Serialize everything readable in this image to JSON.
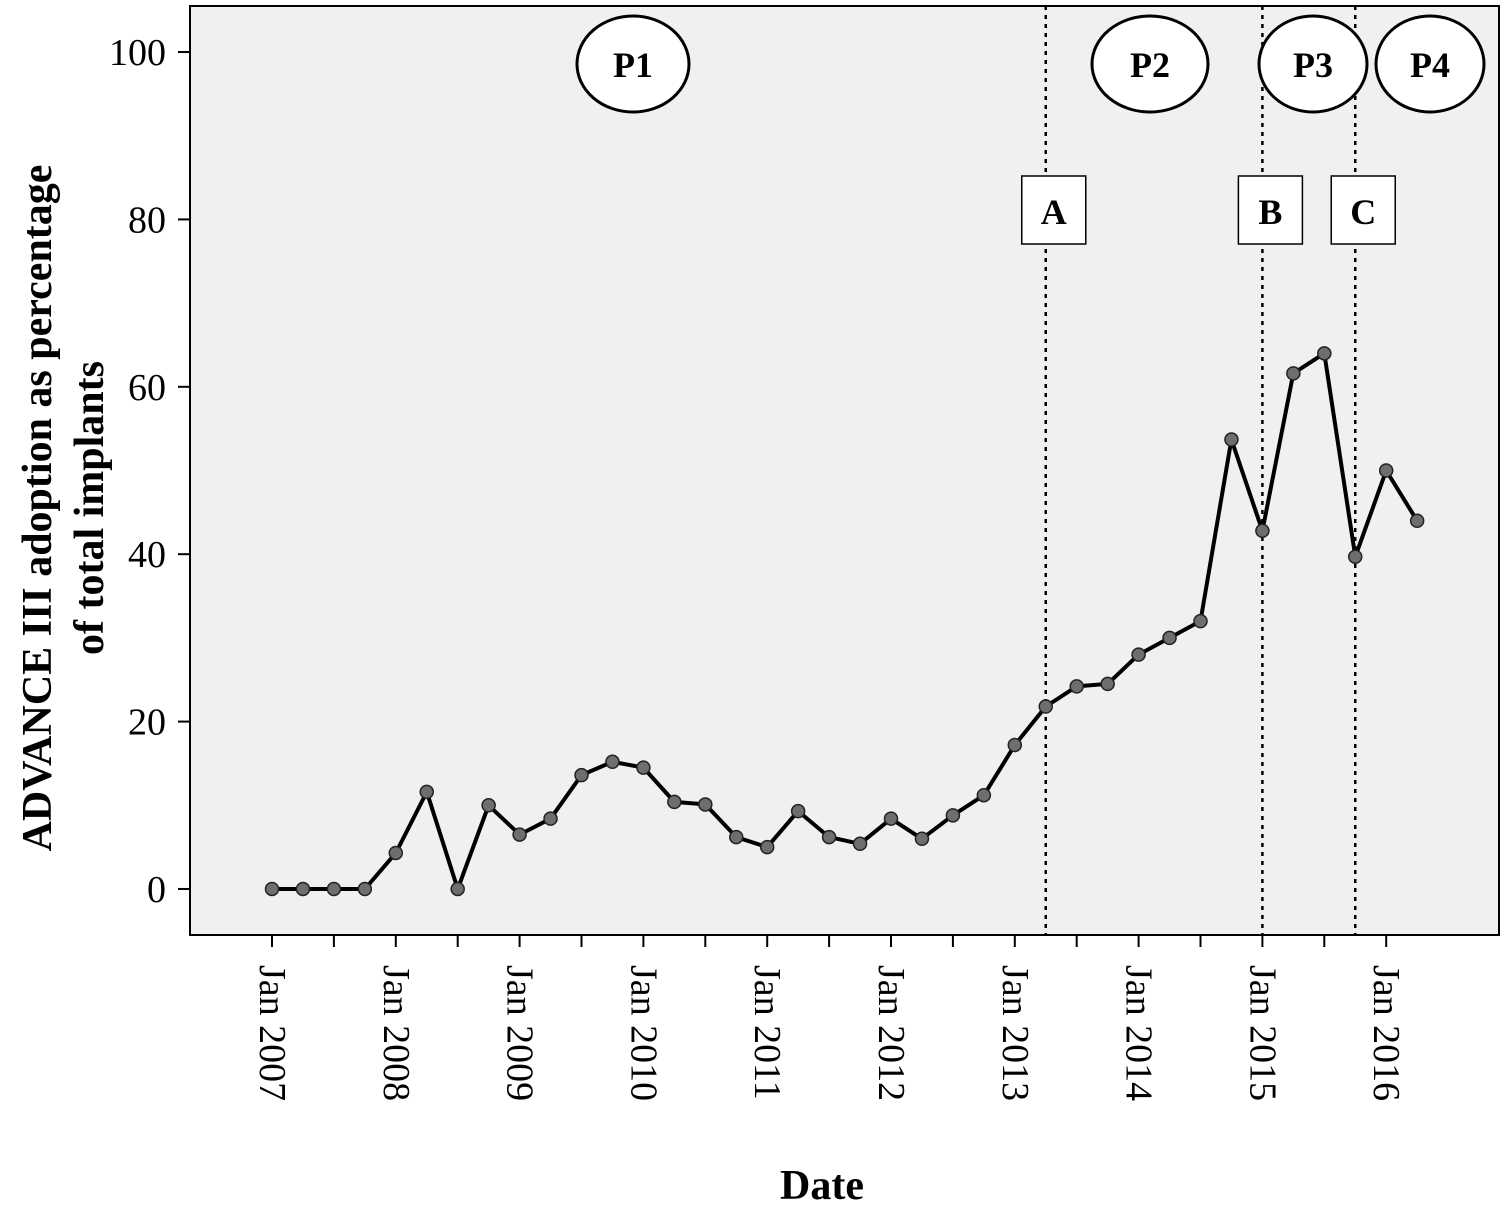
{
  "chart_data": {
    "type": "line",
    "title": "",
    "xlabel": "Date",
    "ylabel_lines": [
      "ADVANCE III  adoption as percentage",
      "of total implants"
    ],
    "ylim": [
      -5.5,
      105.5
    ],
    "y_ticks": [
      0,
      20,
      40,
      60,
      80,
      100
    ],
    "x_ticks": [
      {
        "label": "Jan 2007",
        "q": 0
      },
      {
        "label": "Jan 2008",
        "q": 4
      },
      {
        "label": "Jan 2009",
        "q": 8
      },
      {
        "label": "Jan 2010",
        "q": 12
      },
      {
        "label": "Jan 2011",
        "q": 16
      },
      {
        "label": "Jan 2012",
        "q": 20
      },
      {
        "label": "Jan 2013",
        "q": 24
      },
      {
        "label": "Jan 2014",
        "q": 28
      },
      {
        "label": "Jan 2015",
        "q": 32
      },
      {
        "label": "Jan 2016",
        "q": 36
      }
    ],
    "grid": false,
    "background": "#f0f0f0",
    "line_color": "#000000",
    "marker_color": "#6e6e6e",
    "series": [
      {
        "name": "",
        "values": [
          0,
          0,
          0,
          0,
          4.3,
          11.6,
          0,
          10.0,
          6.5,
          8.4,
          13.6,
          15.2,
          14.5,
          10.4,
          10.1,
          6.2,
          5.0,
          9.3,
          6.2,
          5.4,
          8.4,
          6.0,
          8.8,
          11.2,
          17.2,
          21.8,
          24.2,
          24.5,
          28.0,
          30.0,
          32.0,
          53.7,
          42.8,
          61.6,
          64.0,
          39.7,
          50.0,
          44.0
        ]
      }
    ],
    "vlines": [
      {
        "label": "A",
        "q": 25
      },
      {
        "label": "B",
        "q": 32
      },
      {
        "label": "C",
        "q": 35
      }
    ],
    "periods": [
      "P1",
      "P2",
      "P3",
      "P4"
    ]
  }
}
